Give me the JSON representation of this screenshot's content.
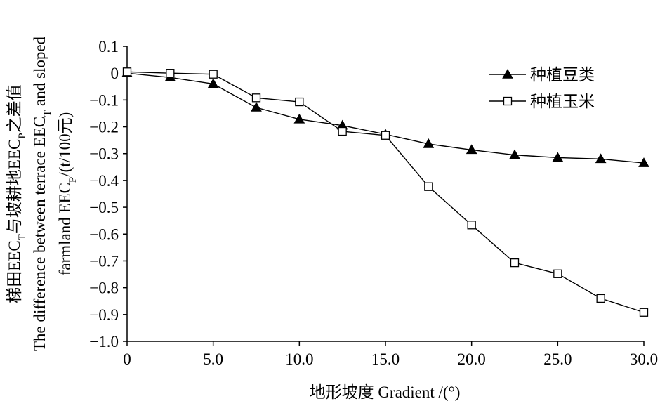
{
  "chart_data": {
    "type": "line",
    "xlabel": "地形坡度 Gradient /(°)",
    "ylabel_lines": [
      "梯田EEC_T与坡耕地EEC_P之差值",
      "The difference between terrace EEC_T and sloped",
      "farmland EEC_P/(t/100元)"
    ],
    "xlim": [
      0,
      30
    ],
    "ylim": [
      -1.0,
      0.1
    ],
    "x_ticks": [
      "0",
      "5.0",
      "10.0",
      "15.0",
      "20.0",
      "25.0",
      "30.0"
    ],
    "y_ticks": [
      "0.1",
      "0",
      "-0.1",
      "-0.2",
      "-0.3",
      "-0.4",
      "-0.5",
      "-0.6",
      "-0.7",
      "-0.8",
      "-0.9",
      "-1.0"
    ],
    "legend_position": "top-right",
    "series": [
      {
        "name": "种植豆类",
        "marker": "filled-triangle",
        "x": [
          0,
          2.5,
          5.0,
          7.5,
          10.0,
          12.5,
          15.0,
          17.5,
          20.0,
          22.5,
          25.0,
          27.5,
          30.0
        ],
        "y": [
          0.0,
          -0.016,
          -0.04,
          -0.128,
          -0.172,
          -0.195,
          -0.228,
          -0.264,
          -0.286,
          -0.305,
          -0.315,
          -0.32,
          -0.335
        ]
      },
      {
        "name": "种植玉米",
        "marker": "open-square",
        "x": [
          0,
          2.5,
          5.0,
          7.5,
          10.0,
          12.5,
          15.0,
          17.5,
          20.0,
          22.5,
          25.0,
          27.5,
          30.0
        ],
        "y": [
          0.005,
          0.0,
          -0.004,
          -0.092,
          -0.107,
          -0.217,
          -0.232,
          -0.423,
          -0.566,
          -0.707,
          -0.748,
          -0.84,
          -0.892
        ]
      }
    ]
  }
}
